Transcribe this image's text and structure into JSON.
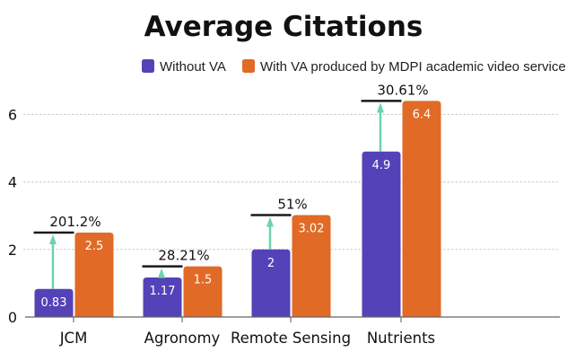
{
  "chart_data": {
    "type": "bar",
    "title": "Average Citations",
    "xlabel": "",
    "ylabel": "",
    "categories": [
      "JCM",
      "Agronomy",
      "Remote Sensing",
      "Nutrients"
    ],
    "series": [
      {
        "name": "Without VA",
        "color": "#5442b8",
        "values": [
          0.83,
          1.17,
          2,
          4.9
        ],
        "labels": [
          "0.83",
          "1.17",
          "2",
          "4.9"
        ]
      },
      {
        "name": "With VA produced by MDPI academic video service",
        "color": "#e06a26",
        "values": [
          2.5,
          1.5,
          3.02,
          6.4
        ],
        "labels": [
          "2.5",
          "1.5",
          "3.02",
          "6.4"
        ]
      }
    ],
    "annotations": [
      {
        "category": "JCM",
        "text": "201.2%"
      },
      {
        "category": "Agronomy",
        "text": "28.21%"
      },
      {
        "category": "Remote Sensing",
        "text": "51%"
      },
      {
        "category": "Nutrients",
        "text": "30.61%"
      }
    ],
    "annotation_arrow_color": "#6dd3ac",
    "yticks": [
      0,
      2,
      4,
      6
    ],
    "ylim": [
      0,
      6.6
    ],
    "grid": true,
    "legend_position": "top-right"
  }
}
